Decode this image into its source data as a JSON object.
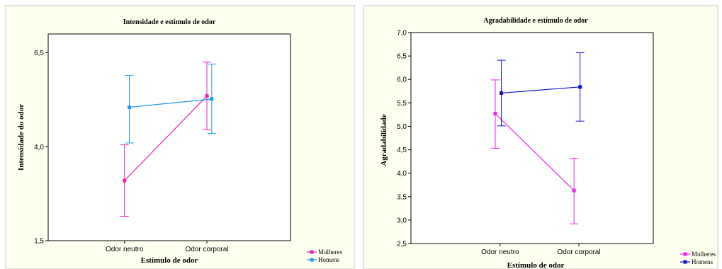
{
  "chart_data": [
    {
      "type": "line",
      "title": "Intensidade e estímulo de odor",
      "xlabel": "Estímulo de odor",
      "ylabel": "Intensidade do odor",
      "categories": [
        "Odor neutro",
        "Odor corporal"
      ],
      "ylim": [
        1.5,
        7.0
      ],
      "yticks": [
        "1,5",
        "4,0",
        "6,5"
      ],
      "series": [
        {
          "name": "Mulheres",
          "color": "#ee22aa",
          "values": [
            3.1,
            5.35
          ],
          "lower": [
            2.15,
            4.45
          ],
          "upper": [
            4.05,
            6.25
          ]
        },
        {
          "name": "Homens",
          "color": "#2299ee",
          "values": [
            5.05,
            5.27
          ],
          "lower": [
            4.1,
            4.35
          ],
          "upper": [
            5.9,
            6.2
          ]
        }
      ],
      "legend": "bottom-right",
      "grid": false,
      "background": "#fffff0"
    },
    {
      "type": "line",
      "title": "Agradabilidade e estímulo de odor",
      "xlabel": "Estímulo de odor",
      "ylabel": "Agradabilidade",
      "categories": [
        "Odor neutro",
        "Odor corporal"
      ],
      "ylim": [
        2.5,
        7.0
      ],
      "yticks": [
        "2,5",
        "3,0",
        "3,5",
        "4,0",
        "4,5",
        "5,0",
        "5,5",
        "6,0",
        "6,5",
        "7,0"
      ],
      "series": [
        {
          "name": "Mulheres",
          "color": "#ee22ee",
          "values": [
            5.27,
            3.63
          ],
          "lower": [
            4.53,
            2.92
          ],
          "upper": [
            5.99,
            4.32
          ]
        },
        {
          "name": "Homens",
          "color": "#1111cc",
          "values": [
            5.71,
            5.84
          ],
          "lower": [
            5.01,
            5.11
          ],
          "upper": [
            6.41,
            6.57
          ]
        }
      ],
      "legend": "bottom-right",
      "grid": false,
      "background": "#fffff0"
    }
  ]
}
